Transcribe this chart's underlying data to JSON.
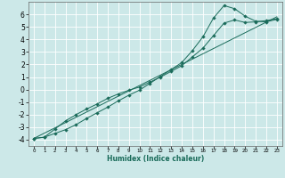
{
  "xlabel": "Humidex (Indice chaleur)",
  "background_color": "#cce8e8",
  "grid_color": "#ffffff",
  "line_color": "#1a6b5a",
  "ylim": [
    -4.5,
    7.0
  ],
  "xlim": [
    -0.5,
    23.5
  ],
  "yticks": [
    -4,
    -3,
    -2,
    -1,
    0,
    1,
    2,
    3,
    4,
    5,
    6
  ],
  "xticks": [
    0,
    1,
    2,
    3,
    4,
    5,
    6,
    7,
    8,
    9,
    10,
    11,
    12,
    13,
    14,
    15,
    16,
    17,
    18,
    19,
    20,
    21,
    22,
    23
  ],
  "line1_x": [
    0,
    1,
    2,
    3,
    4,
    5,
    6,
    7,
    8,
    9,
    10,
    11,
    12,
    13,
    14,
    15,
    16,
    17,
    18,
    19,
    20,
    21,
    22,
    23
  ],
  "line1_y": [
    -3.9,
    -3.8,
    -3.5,
    -3.2,
    -2.8,
    -2.3,
    -1.85,
    -1.4,
    -0.9,
    -0.45,
    -0.05,
    0.5,
    1.05,
    1.6,
    2.15,
    3.1,
    4.2,
    5.7,
    6.7,
    6.45,
    5.85,
    5.45,
    5.4,
    5.6
  ],
  "line2_x": [
    0,
    1,
    2,
    3,
    4,
    5,
    6,
    7,
    8,
    9,
    10,
    11,
    12,
    13,
    14,
    15,
    16,
    17,
    18,
    19,
    20,
    21,
    22,
    23
  ],
  "line2_y": [
    -3.9,
    -3.8,
    -3.15,
    -2.5,
    -2.0,
    -1.55,
    -1.15,
    -0.7,
    -0.35,
    -0.05,
    0.2,
    0.6,
    1.0,
    1.45,
    1.9,
    2.6,
    3.3,
    4.3,
    5.3,
    5.55,
    5.35,
    5.4,
    5.5,
    5.65
  ],
  "line3_x": [
    0,
    23
  ],
  "line3_y": [
    -3.9,
    5.8
  ],
  "marker_size": 2.2,
  "line_width": 0.7
}
